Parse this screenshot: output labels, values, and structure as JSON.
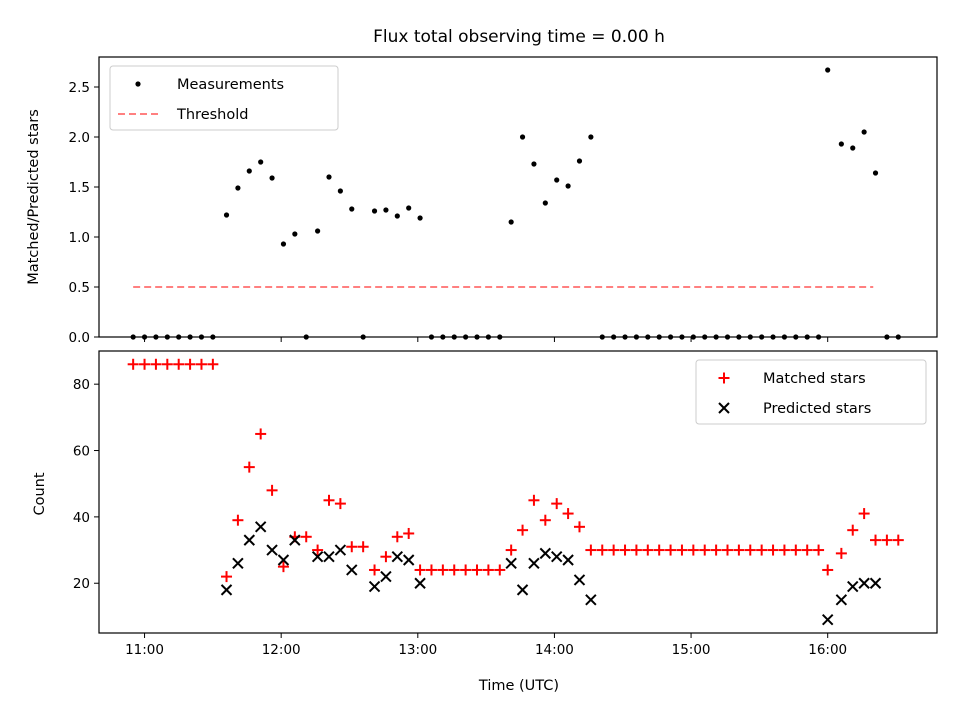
{
  "chart_data": [
    {
      "type": "scatter",
      "title": "Flux total observing time = 0.00 h",
      "xlabel": "",
      "ylabel": "Matched/Predicted stars",
      "xlim": [
        "10:40",
        "16:48"
      ],
      "ylim": [
        0,
        2.8
      ],
      "yticks": [
        0.0,
        0.5,
        1.0,
        1.5,
        2.0,
        2.5
      ],
      "yticklabels": [
        "0.0",
        "0.5",
        "1.0",
        "1.5",
        "2.0",
        "2.5"
      ],
      "xticks": [
        "11:00",
        "12:00",
        "13:00",
        "14:00",
        "15:00",
        "16:00"
      ],
      "xticklabels": [
        "",
        "",
        "",
        "",
        "",
        ""
      ],
      "legend": {
        "placement": "upper left",
        "entries": [
          "Measurements",
          "Threshold"
        ]
      },
      "threshold": {
        "name": "Threshold",
        "value": 0.5,
        "x_range": [
          "10:55",
          "16:20"
        ],
        "color": "#ff8080"
      },
      "series": [
        {
          "name": "Measurements",
          "color": "#000000",
          "points": [
            [
              "10:55",
              0
            ],
            [
              "11:00",
              0
            ],
            [
              "11:05",
              0
            ],
            [
              "11:10",
              0
            ],
            [
              "11:15",
              0
            ],
            [
              "11:20",
              0
            ],
            [
              "11:25",
              0
            ],
            [
              "11:30",
              0
            ],
            [
              "11:36",
              1.22
            ],
            [
              "11:41",
              1.49
            ],
            [
              "11:46",
              1.66
            ],
            [
              "11:51",
              1.75
            ],
            [
              "11:56",
              1.59
            ],
            [
              "12:01",
              0.93
            ],
            [
              "12:06",
              1.03
            ],
            [
              "12:11",
              0
            ],
            [
              "12:16",
              1.06
            ],
            [
              "12:21",
              1.6
            ],
            [
              "12:26",
              1.46
            ],
            [
              "12:31",
              1.28
            ],
            [
              "12:36",
              0
            ],
            [
              "12:41",
              1.26
            ],
            [
              "12:46",
              1.27
            ],
            [
              "12:51",
              1.21
            ],
            [
              "12:56",
              1.29
            ],
            [
              "13:01",
              1.19
            ],
            [
              "13:06",
              0
            ],
            [
              "13:11",
              0
            ],
            [
              "13:16",
              0
            ],
            [
              "13:21",
              0
            ],
            [
              "13:26",
              0
            ],
            [
              "13:31",
              0
            ],
            [
              "13:36",
              0
            ],
            [
              "13:41",
              1.15
            ],
            [
              "13:46",
              2.0
            ],
            [
              "13:51",
              1.73
            ],
            [
              "13:56",
              1.34
            ],
            [
              "14:01",
              1.57
            ],
            [
              "14:06",
              1.51
            ],
            [
              "14:11",
              1.76
            ],
            [
              "14:16",
              2.0
            ],
            [
              "14:21",
              0
            ],
            [
              "14:26",
              0
            ],
            [
              "14:31",
              0
            ],
            [
              "14:36",
              0
            ],
            [
              "14:41",
              0
            ],
            [
              "14:46",
              0
            ],
            [
              "14:51",
              0
            ],
            [
              "14:56",
              0
            ],
            [
              "15:01",
              0
            ],
            [
              "15:06",
              0
            ],
            [
              "15:11",
              0
            ],
            [
              "15:16",
              0
            ],
            [
              "15:21",
              0
            ],
            [
              "15:26",
              0
            ],
            [
              "15:31",
              0
            ],
            [
              "15:36",
              0
            ],
            [
              "15:41",
              0
            ],
            [
              "15:46",
              0
            ],
            [
              "15:51",
              0
            ],
            [
              "15:56",
              0
            ],
            [
              "16:00",
              2.67
            ],
            [
              "16:06",
              1.93
            ],
            [
              "16:11",
              1.89
            ],
            [
              "16:16",
              2.05
            ],
            [
              "16:21",
              1.64
            ],
            [
              "16:26",
              0
            ],
            [
              "16:31",
              0
            ]
          ]
        }
      ]
    },
    {
      "type": "scatter",
      "title": "",
      "xlabel": "Time (UTC)",
      "ylabel": "Count",
      "xlim": [
        "10:40",
        "16:48"
      ],
      "ylim": [
        5,
        90
      ],
      "yticks": [
        20,
        40,
        60,
        80
      ],
      "yticklabels": [
        "20",
        "40",
        "60",
        "80"
      ],
      "xticks": [
        "11:00",
        "12:00",
        "13:00",
        "14:00",
        "15:00",
        "16:00"
      ],
      "xticklabels": [
        "11:00",
        "12:00",
        "13:00",
        "14:00",
        "15:00",
        "16:00"
      ],
      "legend": {
        "placement": "upper right",
        "entries": [
          "Matched stars",
          "Predicted stars"
        ]
      },
      "series": [
        {
          "name": "Matched stars",
          "color": "#ff0000",
          "marker": "plus",
          "points": [
            [
              "10:55",
              86
            ],
            [
              "11:00",
              86
            ],
            [
              "11:05",
              86
            ],
            [
              "11:10",
              86
            ],
            [
              "11:15",
              86
            ],
            [
              "11:20",
              86
            ],
            [
              "11:25",
              86
            ],
            [
              "11:30",
              86
            ],
            [
              "11:36",
              22
            ],
            [
              "11:41",
              39
            ],
            [
              "11:46",
              55
            ],
            [
              "11:51",
              65
            ],
            [
              "11:56",
              48
            ],
            [
              "12:01",
              25
            ],
            [
              "12:06",
              34
            ],
            [
              "12:11",
              34
            ],
            [
              "12:16",
              30
            ],
            [
              "12:21",
              45
            ],
            [
              "12:26",
              44
            ],
            [
              "12:31",
              31
            ],
            [
              "12:36",
              31
            ],
            [
              "12:41",
              24
            ],
            [
              "12:46",
              28
            ],
            [
              "12:51",
              34
            ],
            [
              "12:56",
              35
            ],
            [
              "13:01",
              24
            ],
            [
              "13:06",
              24
            ],
            [
              "13:11",
              24
            ],
            [
              "13:16",
              24
            ],
            [
              "13:21",
              24
            ],
            [
              "13:26",
              24
            ],
            [
              "13:31",
              24
            ],
            [
              "13:36",
              24
            ],
            [
              "13:41",
              30
            ],
            [
              "13:46",
              36
            ],
            [
              "13:51",
              45
            ],
            [
              "13:56",
              39
            ],
            [
              "14:01",
              44
            ],
            [
              "14:06",
              41
            ],
            [
              "14:11",
              37
            ],
            [
              "14:16",
              30
            ],
            [
              "14:21",
              30
            ],
            [
              "14:26",
              30
            ],
            [
              "14:31",
              30
            ],
            [
              "14:36",
              30
            ],
            [
              "14:41",
              30
            ],
            [
              "14:46",
              30
            ],
            [
              "14:51",
              30
            ],
            [
              "14:56",
              30
            ],
            [
              "15:01",
              30
            ],
            [
              "15:06",
              30
            ],
            [
              "15:11",
              30
            ],
            [
              "15:16",
              30
            ],
            [
              "15:21",
              30
            ],
            [
              "15:26",
              30
            ],
            [
              "15:31",
              30
            ],
            [
              "15:36",
              30
            ],
            [
              "15:41",
              30
            ],
            [
              "15:46",
              30
            ],
            [
              "15:51",
              30
            ],
            [
              "15:56",
              30
            ],
            [
              "16:00",
              24
            ],
            [
              "16:06",
              29
            ],
            [
              "16:11",
              36
            ],
            [
              "16:16",
              41
            ],
            [
              "16:21",
              33
            ],
            [
              "16:26",
              33
            ],
            [
              "16:31",
              33
            ]
          ]
        },
        {
          "name": "Predicted stars",
          "color": "#000000",
          "marker": "x",
          "points": [
            [
              "11:36",
              18
            ],
            [
              "11:41",
              26
            ],
            [
              "11:46",
              33
            ],
            [
              "11:51",
              37
            ],
            [
              "11:56",
              30
            ],
            [
              "12:01",
              27
            ],
            [
              "12:06",
              33
            ],
            [
              "12:16",
              28
            ],
            [
              "12:21",
              28
            ],
            [
              "12:26",
              30
            ],
            [
              "12:31",
              24
            ],
            [
              "12:41",
              19
            ],
            [
              "12:46",
              22
            ],
            [
              "12:51",
              28
            ],
            [
              "12:56",
              27
            ],
            [
              "13:01",
              20
            ],
            [
              "13:41",
              26
            ],
            [
              "13:46",
              18
            ],
            [
              "13:51",
              26
            ],
            [
              "13:56",
              29
            ],
            [
              "14:01",
              28
            ],
            [
              "14:06",
              27
            ],
            [
              "14:11",
              21
            ],
            [
              "14:16",
              15
            ],
            [
              "16:00",
              9
            ],
            [
              "16:06",
              15
            ],
            [
              "16:11",
              19
            ],
            [
              "16:16",
              20
            ],
            [
              "16:21",
              20
            ]
          ]
        }
      ]
    }
  ]
}
